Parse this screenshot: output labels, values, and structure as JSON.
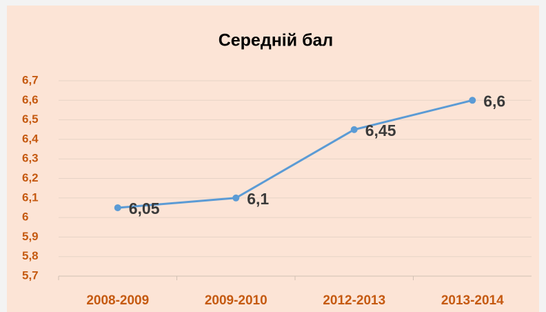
{
  "chart_data": {
    "type": "line",
    "title": "Середній бал",
    "categories": [
      "2008-2009",
      "2009-2010",
      "2012-2013",
      "2013-2014"
    ],
    "values": [
      6.05,
      6.1,
      6.45,
      6.6
    ],
    "value_labels": [
      "6,05",
      "6,1",
      "6,45",
      "6,6"
    ],
    "color": "#5b9bd5",
    "ylim": [
      5.7,
      6.7
    ],
    "yticks": [
      {
        "value": 5.7,
        "label": "5,7"
      },
      {
        "value": 5.8,
        "label": "5,8"
      },
      {
        "value": 5.9,
        "label": "5,9"
      },
      6,
      {
        "value": 6.1,
        "label": "6,1"
      },
      {
        "value": 6.2,
        "label": "6,2"
      },
      {
        "value": 6.3,
        "label": "6,3"
      },
      {
        "value": 6.4,
        "label": "6,4"
      },
      {
        "value": 6.5,
        "label": "6,5"
      },
      {
        "value": 6.6,
        "label": "6,6"
      },
      {
        "value": 6.7,
        "label": "6,7"
      }
    ],
    "grid": true
  }
}
